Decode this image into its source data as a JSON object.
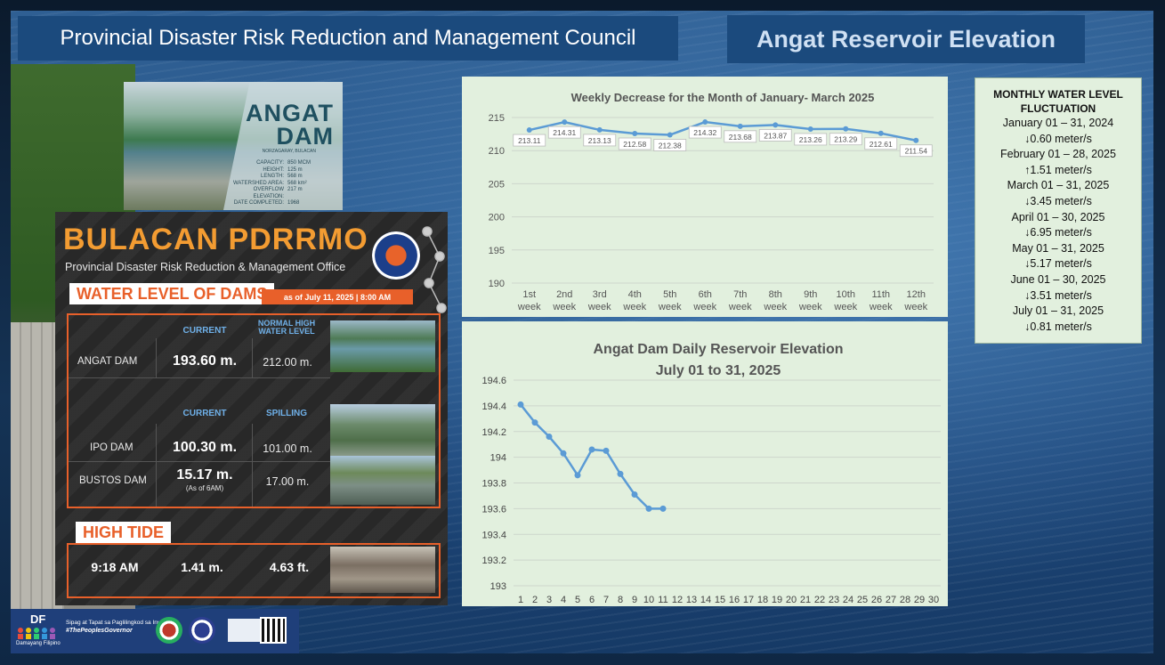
{
  "header": {
    "left_title": "Provincial Disaster Risk Reduction and Management Council",
    "right_title": "Angat Reservoir Elevation"
  },
  "angat_card": {
    "title_line1": "ANGAT",
    "title_line2": "DAM",
    "location": "NORZAGARAY, BULACAN",
    "specs": [
      {
        "k": "CAPACITY:",
        "v": "850 MCM"
      },
      {
        "k": "HEIGHT:",
        "v": "125 m"
      },
      {
        "k": "LENGTH:",
        "v": "568 m"
      },
      {
        "k": "WATERSHED AREA:",
        "v": "568 km²"
      },
      {
        "k": "OVERFLOW ELEVATION:",
        "v": "217 m"
      },
      {
        "k": "DATE COMPLETED:",
        "v": "1968"
      }
    ]
  },
  "pdrrmo": {
    "title": "BULACAN PDRRMO",
    "subtitle": "Provincial Disaster Risk Reduction & Management Office",
    "water_level_label": "WATER LEVEL OF DAMS",
    "as_of": "as of July 11, 2025 | 8:00 AM",
    "col_current": "CURRENT",
    "col_normal_high": "NORMAL HIGH WATER LEVEL",
    "col_current2": "CURRENT",
    "col_spilling": "SPILLING",
    "angat": {
      "name": "ANGAT DAM",
      "current": "193.60 m.",
      "normal": "212.00 m."
    },
    "ipo": {
      "name": "IPO DAM",
      "current": "100.30 m.",
      "spilling": "101.00 m."
    },
    "bustos": {
      "name": "BUSTOS DAM",
      "current": "15.17 m.",
      "note": "(As of 6AM)",
      "spilling": "17.00 m."
    },
    "high_tide_label": "HIGH TIDE",
    "high_tide": {
      "time": "9:18 AM",
      "meters": "1.41 m.",
      "feet": "4.63 ft."
    }
  },
  "monthly": {
    "title": "MONTHLY WATER LEVEL FLUCTUATION",
    "items": [
      {
        "period": "January 01 – 31, 2024",
        "change": "↓0.60 meter/s"
      },
      {
        "period": "February 01 – 28, 2025",
        "change": "↑1.51 meter/s"
      },
      {
        "period": "March 01 – 31, 2025",
        "change": "↓3.45 meter/s"
      },
      {
        "period": "April 01 – 30, 2025",
        "change": "↓6.95  meter/s"
      },
      {
        "period": "May 01 – 31, 2025",
        "change": "↓5.17 meter/s"
      },
      {
        "period": "June 01 – 30, 2025",
        "change": "↓3.51 meter/s"
      },
      {
        "period": "July 01 – 31, 2025",
        "change": "↓0.81 meter/s"
      }
    ]
  },
  "footer": {
    "brand": "DF",
    "brand_sub": "Damayang Filipino",
    "tagline1": "Sipag at Tapat sa Paglilingkod sa Inyo",
    "tagline2": "#ThePeoplesGovernor"
  },
  "colors": {
    "line": "#5b9bd5",
    "accent_orange": "#e8602a",
    "banner": "#1b4a7d",
    "chart_bg": "#e2f0de"
  },
  "chart_data": [
    {
      "type": "line",
      "title": "Weekly Decrease for the Month of  January- March 2025",
      "categories": [
        "1st week",
        "2nd week",
        "3rd week",
        "4th week",
        "5th week",
        "6th week",
        "7th week",
        "8th week",
        "9th week",
        "10th week",
        "11th week",
        "12th week"
      ],
      "values": [
        213.11,
        214.31,
        213.13,
        212.58,
        212.38,
        214.32,
        213.68,
        213.87,
        213.26,
        213.29,
        212.61,
        211.54
      ],
      "data_labels": [
        "213.11",
        "214.31",
        "213.13",
        "212.58",
        "212.38",
        "214.32",
        "213.68",
        "213.87",
        "213.26",
        "213.29",
        "212.61",
        "211.54"
      ],
      "ylim": [
        190,
        215
      ],
      "yticks": [
        190,
        195,
        200,
        205,
        210,
        215
      ],
      "grid": true
    },
    {
      "type": "line",
      "title": "Angat Dam Daily Reservoir Elevation",
      "subtitle": "July 01 to 31, 2025",
      "x": [
        1,
        2,
        3,
        4,
        5,
        6,
        7,
        8,
        9,
        10,
        11
      ],
      "values": [
        194.41,
        194.27,
        194.16,
        194.03,
        193.86,
        194.06,
        194.05,
        193.87,
        193.71,
        193.6,
        193.6
      ],
      "xticks": [
        1,
        2,
        3,
        4,
        5,
        6,
        7,
        8,
        9,
        10,
        11,
        12,
        13,
        14,
        15,
        16,
        17,
        18,
        19,
        20,
        21,
        22,
        23,
        24,
        25,
        26,
        27,
        28,
        29,
        30
      ],
      "ylim": [
        193,
        194.6
      ],
      "yticks": [
        193,
        193.2,
        193.4,
        193.6,
        193.8,
        194,
        194.2,
        194.4,
        194.6
      ],
      "ytick_labels": [
        "193",
        "193.2",
        "193.4",
        "193.6",
        "193.8",
        "194",
        "194.2",
        "194.4",
        "194.6"
      ],
      "grid": true
    }
  ]
}
